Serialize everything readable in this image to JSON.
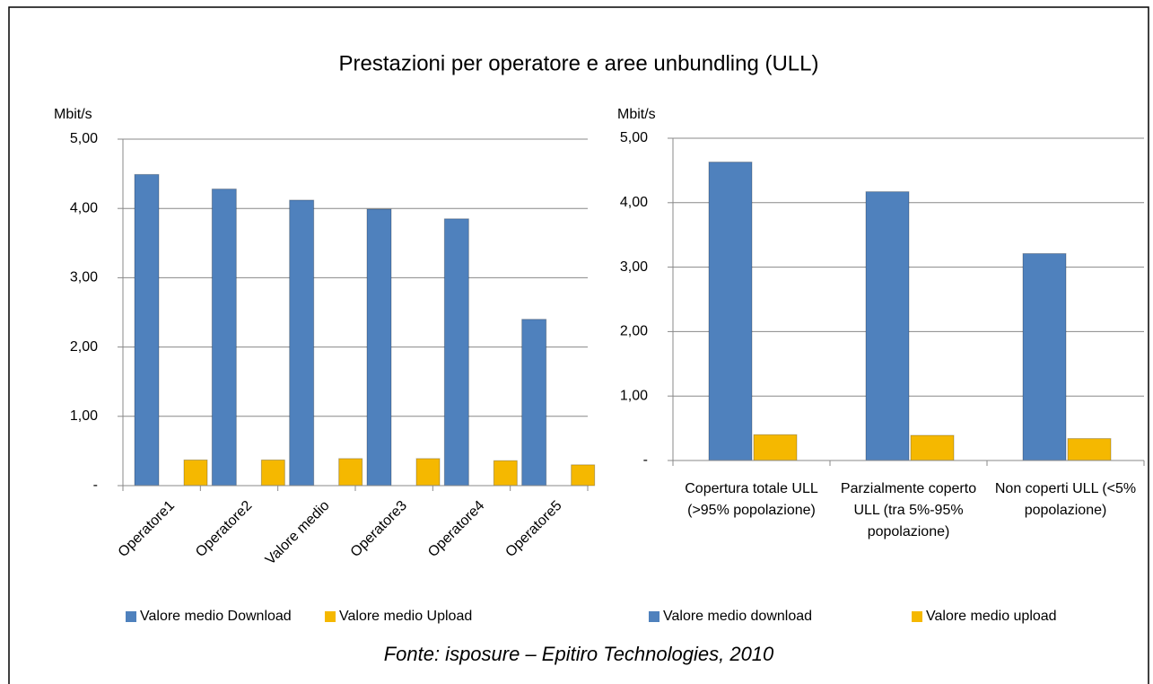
{
  "title": "Prestazioni per operatore e aree unbundling (ULL)",
  "source": "Fonte: isposure – Epitiro Technologies, 2010",
  "chart_data": [
    {
      "type": "bar",
      "y_label": "Mbit/s",
      "categories": [
        "Operatore1",
        "Operatore2",
        "Valore medio",
        "Operatore3",
        "Operatore4",
        "Operatore5"
      ],
      "series": [
        {
          "name": "Valore medio Download",
          "color": "#4f81bd",
          "values": [
            4.49,
            4.28,
            4.12,
            3.99,
            3.85,
            2.4
          ]
        },
        {
          "name": "Valore medio Upload",
          "color": "#f5b800",
          "values": [
            0.37,
            0.37,
            0.39,
            0.39,
            0.36,
            0.3
          ]
        }
      ],
      "ylim": [
        0,
        5
      ],
      "yticks": [
        {
          "value": 0,
          "label": "-"
        },
        {
          "value": 1,
          "label": "1,00"
        },
        {
          "value": 2,
          "label": "2,00"
        },
        {
          "value": 3,
          "label": "3,00"
        },
        {
          "value": 4,
          "label": "4,00"
        },
        {
          "value": 5,
          "label": "5,00"
        }
      ],
      "grid": true
    },
    {
      "type": "bar",
      "y_label": "Mbit/s",
      "categories": [
        "Copertura totale ULL (>95% popolazione)",
        "Parzialmente coperto ULL (tra 5%-95% popolazione)",
        "Non coperti ULL (<5% popolazione)"
      ],
      "series": [
        {
          "name": "Valore medio download",
          "color": "#4f81bd",
          "values": [
            4.63,
            4.17,
            3.21
          ]
        },
        {
          "name": "Valore medio upload",
          "color": "#f5b800",
          "values": [
            0.4,
            0.39,
            0.34
          ]
        }
      ],
      "ylim": [
        0,
        5
      ],
      "yticks": [
        {
          "value": 0,
          "label": "-"
        },
        {
          "value": 1,
          "label": "1,00"
        },
        {
          "value": 2,
          "label": "2,00"
        },
        {
          "value": 3,
          "label": "3,00"
        },
        {
          "value": 4,
          "label": "4,00"
        },
        {
          "value": 5,
          "label": "5,00"
        }
      ],
      "grid": true
    }
  ]
}
